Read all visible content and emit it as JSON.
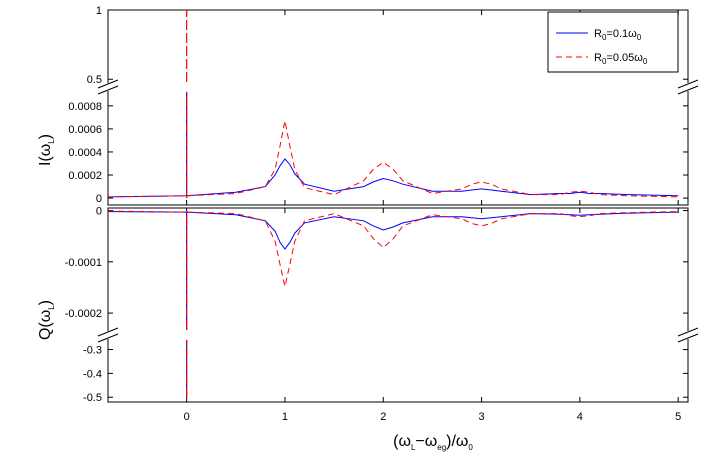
{
  "chart_data": {
    "type": "line",
    "xlabel": "(ω_L−ω_eg)/ω_0",
    "xlabel_parts": {
      "open": "(ω",
      "s1": "L",
      "mid": "−ω",
      "s2": "eg",
      "close": ")/ω",
      "s3": "0"
    },
    "xlim": [
      -0.8,
      5.1
    ],
    "xticks": [
      0,
      1,
      2,
      3,
      4,
      5
    ],
    "legend_position": "top-right",
    "legend": [
      {
        "label_parts": {
          "a": "R",
          "s1": "0",
          "b": "=0.1ω",
          "s2": "0"
        },
        "color": "#0000ff",
        "dash": "solid"
      },
      {
        "label_parts": {
          "a": "R",
          "s1": "0",
          "b": "=0.05ω",
          "s2": "0"
        },
        "color": "#ff0000",
        "dash": "dashed"
      }
    ],
    "panels": [
      {
        "id": "I",
        "ylabel_parts": {
          "a": "I(ω",
          "s": "L",
          "b": ")"
        },
        "segments": [
          {
            "ylim": [
              0.48,
              1.0
            ],
            "ticks": [
              {
                "v": 1,
                "t": "1"
              },
              {
                "v": 0.5,
                "t": "0.5"
              }
            ]
          },
          {
            "ylim": [
              -6e-05,
              0.00092
            ],
            "ticks": [
              {
                "v": 0.0008,
                "t": "0.0008"
              },
              {
                "v": 0.0006,
                "t": "0.0006"
              },
              {
                "v": 0.0004,
                "t": "0.0004"
              },
              {
                "v": 0.0002,
                "t": "0.0002"
              },
              {
                "v": 0,
                "t": "0"
              }
            ]
          }
        ],
        "series": [
          {
            "x": [
              -0.8,
              0.0,
              0.5,
              0.8,
              0.9,
              0.95,
              1.0,
              1.05,
              1.1,
              1.2,
              1.5,
              1.8,
              1.9,
              2.0,
              2.1,
              2.2,
              2.5,
              2.8,
              2.9,
              3.0,
              3.1,
              3.2,
              3.5,
              3.8,
              3.9,
              4.0,
              4.1,
              4.2,
              4.5,
              5.0
            ],
            "y": [
              1e-05,
              2e-05,
              5e-05,
              0.0001,
              0.0002,
              0.00028,
              0.00034,
              0.00029,
              0.00021,
              0.00012,
              6e-05,
              0.0001,
              0.00014,
              0.00017,
              0.00015,
              0.00012,
              6e-05,
              6e-05,
              7e-05,
              8e-05,
              7e-05,
              6e-05,
              3e-05,
              4e-05,
              4e-05,
              5e-05,
              4e-05,
              4e-05,
              3e-05,
              2e-05
            ],
            "spike": {
              "x": 0,
              "to": 0.00092
            }
          },
          {
            "x": [
              -0.8,
              0.0,
              0.5,
              0.8,
              0.9,
              0.95,
              1.0,
              1.05,
              1.1,
              1.2,
              1.5,
              1.8,
              1.9,
              2.0,
              2.1,
              2.2,
              2.5,
              2.8,
              2.9,
              3.0,
              3.1,
              3.2,
              3.5,
              3.8,
              3.9,
              4.0,
              4.1,
              4.2,
              4.5,
              5.0
            ],
            "y": [
              1e-05,
              2e-05,
              4e-05,
              0.0001,
              0.00025,
              0.00045,
              0.00067,
              0.00045,
              0.00025,
              9e-05,
              3e-05,
              0.00015,
              0.00025,
              0.00031,
              0.00025,
              0.00015,
              4e-05,
              8e-05,
              0.00012,
              0.00014,
              0.00012,
              8e-05,
              3e-05,
              3e-05,
              5e-05,
              6e-05,
              5e-05,
              3e-05,
              2e-05,
              1e-05
            ],
            "spike": {
              "x": 0,
              "to": 1.0
            }
          }
        ]
      },
      {
        "id": "Q",
        "ylabel_parts": {
          "a": "Q(ω",
          "s": "L",
          "b": ")"
        },
        "segments": [
          {
            "ylim": [
              -0.000233,
              5e-06
            ],
            "ticks": [
              {
                "v": 0,
                "t": "0"
              },
              {
                "v": -0.0001,
                "t": "-0.0001"
              },
              {
                "v": -0.0002,
                "t": "-0.0002"
              }
            ]
          },
          {
            "ylim": [
              -0.52,
              -0.26
            ],
            "ticks": [
              {
                "v": -0.3,
                "t": "-0.3"
              },
              {
                "v": -0.4,
                "t": "-0.4"
              },
              {
                "v": -0.5,
                "t": "-0.5"
              }
            ]
          }
        ],
        "series": [
          {
            "x": [
              -0.8,
              0.0,
              0.5,
              0.8,
              0.9,
              0.95,
              1.0,
              1.05,
              1.1,
              1.2,
              1.5,
              1.8,
              1.9,
              2.0,
              2.1,
              2.2,
              2.5,
              2.8,
              2.9,
              3.0,
              3.1,
              3.2,
              3.5,
              3.8,
              3.9,
              4.0,
              4.1,
              4.2,
              4.5,
              5.0
            ],
            "y": [
              -2e-06,
              -3e-06,
              -8e-06,
              -2e-05,
              -4e-05,
              -6.2e-05,
              -7.5e-05,
              -6.2e-05,
              -4.4e-05,
              -2.4e-05,
              -1.2e-05,
              -2e-05,
              -3e-05,
              -3.8e-05,
              -3.2e-05,
              -2.4e-05,
              -1.2e-05,
              -1.2e-05,
              -1.4e-05,
              -1.6e-05,
              -1.4e-05,
              -1.2e-05,
              -6e-06,
              -7e-06,
              -8e-06,
              -9e-06,
              -8e-06,
              -7e-06,
              -5e-06,
              -3e-06
            ],
            "spike": {
              "x": 0,
              "to": -0.5
            }
          },
          {
            "x": [
              -0.8,
              0.0,
              0.5,
              0.8,
              0.9,
              0.95,
              1.0,
              1.05,
              1.1,
              1.2,
              1.5,
              1.8,
              1.9,
              2.0,
              2.1,
              2.2,
              2.5,
              2.8,
              2.9,
              3.0,
              3.1,
              3.2,
              3.5,
              3.8,
              3.9,
              4.0,
              4.1,
              4.2,
              4.5,
              5.0
            ],
            "y": [
              -1e-06,
              -3e-06,
              -6e-06,
              -2e-05,
              -6e-05,
              -0.000105,
              -0.000148,
              -0.000105,
              -6e-05,
              -2e-05,
              -6e-06,
              -3e-05,
              -5.5e-05,
              -7.2e-05,
              -5.5e-05,
              -3e-05,
              -8e-06,
              -1.6e-05,
              -2.5e-05,
              -3e-05,
              -2.5e-05,
              -1.6e-05,
              -6e-06,
              -6e-06,
              -1e-05,
              -1.2e-05,
              -1e-05,
              -6e-06,
              -4e-06,
              -2e-06
            ],
            "spike": {
              "x": 0,
              "to": -0.5
            }
          }
        ]
      }
    ]
  }
}
